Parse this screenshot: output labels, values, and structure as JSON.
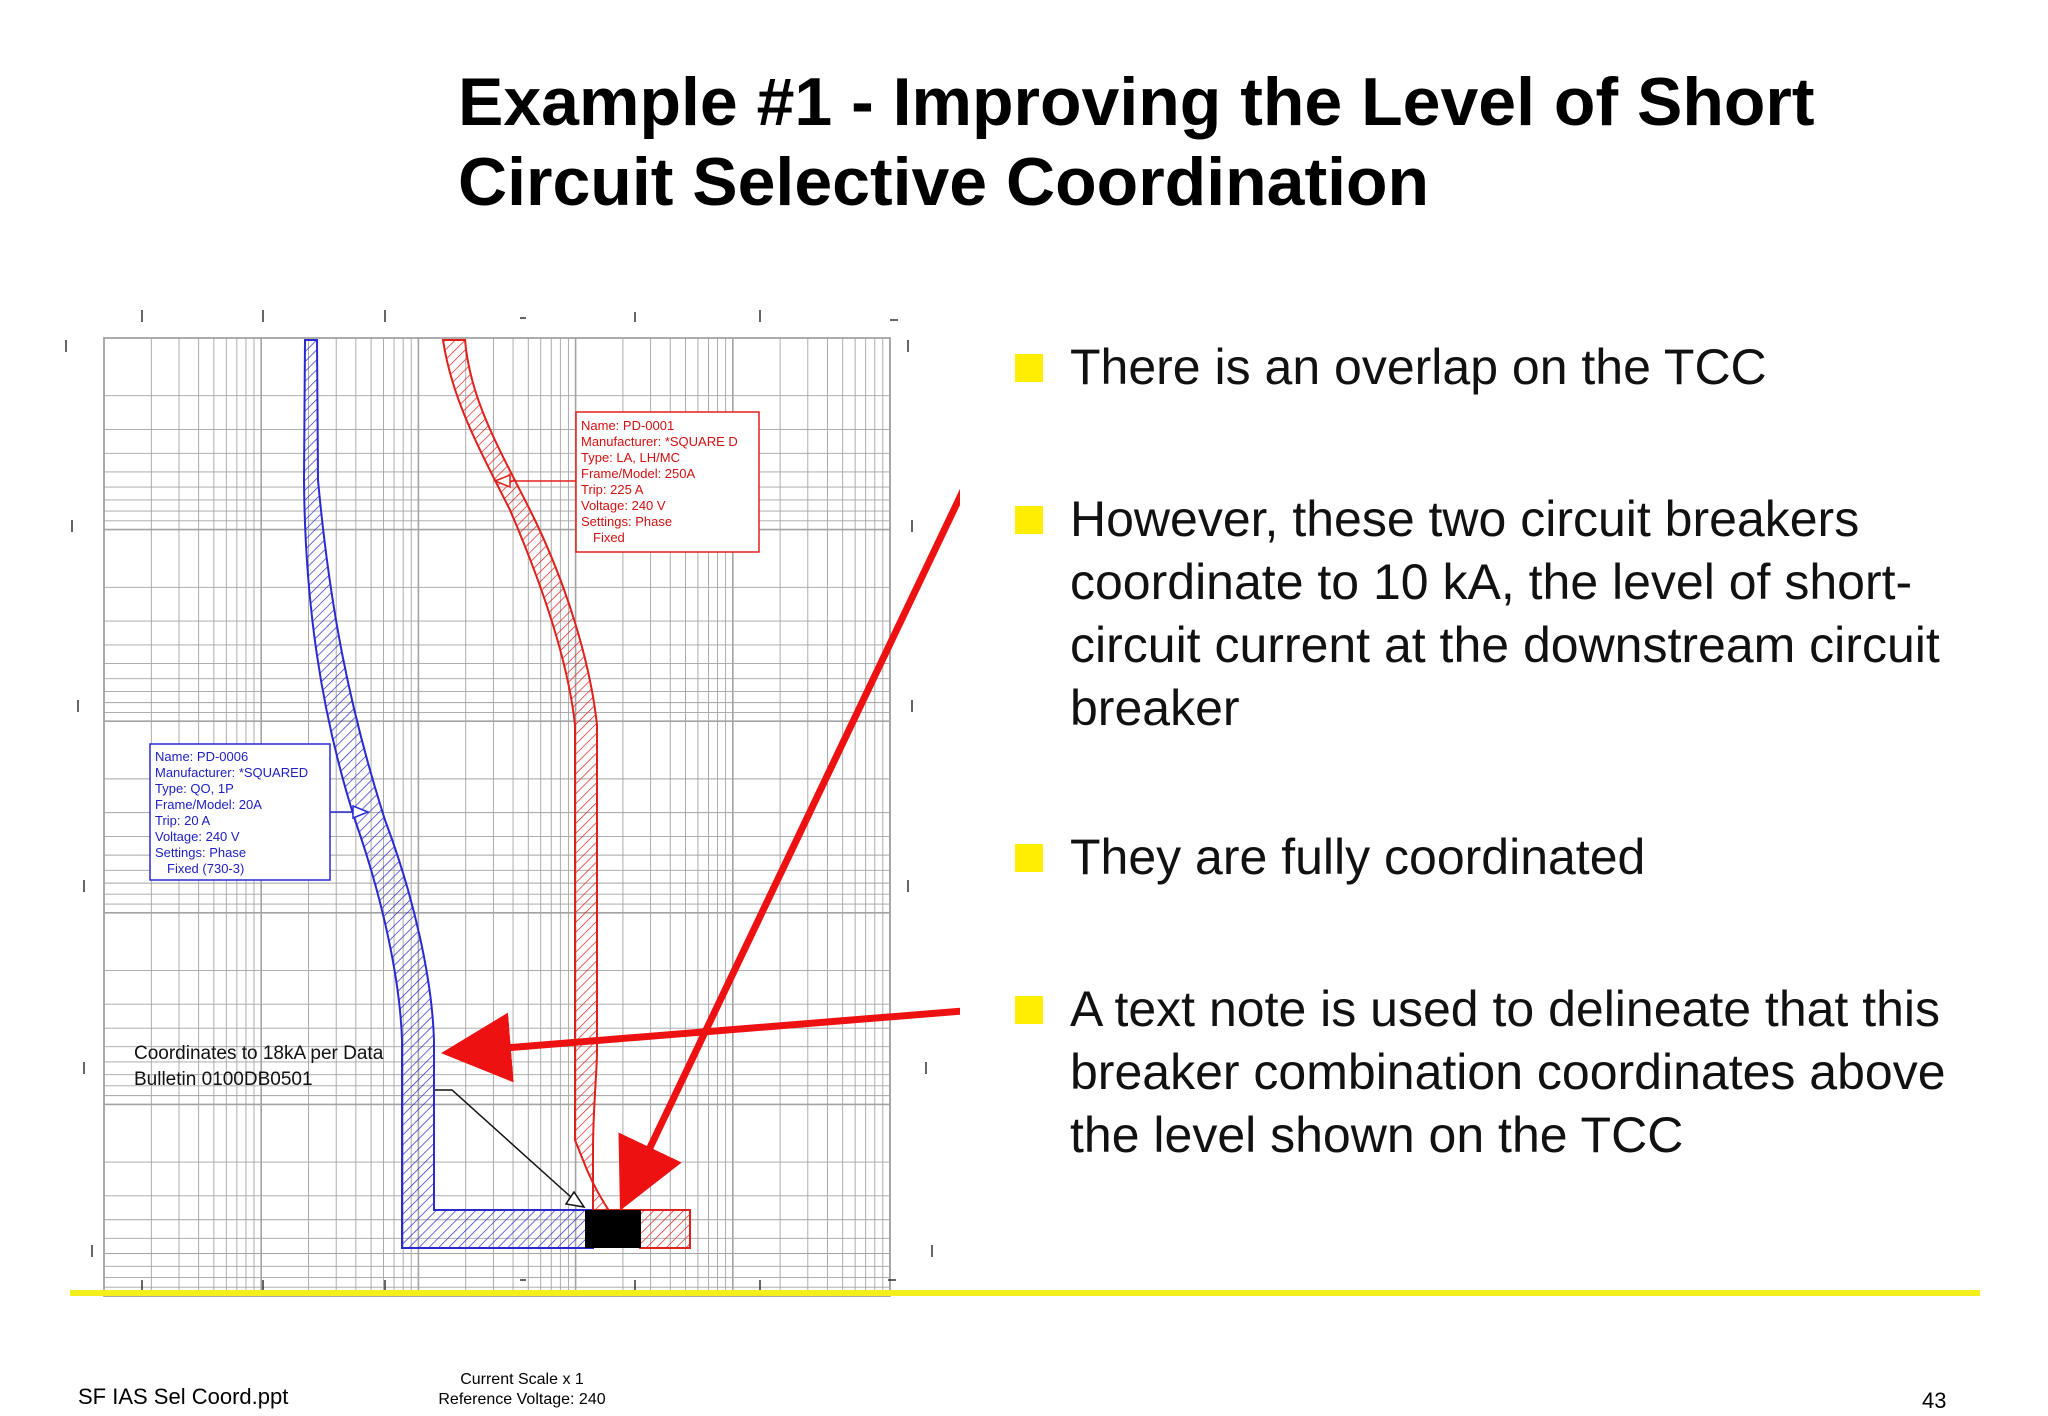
{
  "slide": {
    "title_line1": "Example #1 - Improving the Level of Short",
    "title_line2": "Circuit Selective Coordination"
  },
  "bullets": [
    {
      "text": "There is an overlap on the TCC"
    },
    {
      "text": "However, these two circuit breakers coordinate to 10 kA, the level of short-circuit current at the downstream circuit breaker"
    },
    {
      "text": "They are fully coordinated"
    },
    {
      "text": "A text note is used to delineate that this breaker combination coordinates above the level shown on the TCC"
    }
  ],
  "tcc": {
    "upstream_label": [
      "Name: PD-0001",
      "Manufacturer: *SQUARE D",
      "Type: LA, LH/MC",
      "Frame/Model: 250A",
      "Trip: 225 A",
      "Voltage: 240 V",
      "Settings: Phase",
      "Fixed"
    ],
    "downstream_label": [
      "Name: PD-0006",
      "Manufacturer: *SQUARED",
      "Type: QO, 1P",
      "Frame/Model: 20A",
      "Trip: 20 A",
      "Voltage: 240 V",
      "Settings: Phase",
      "Fixed (730-3)"
    ],
    "note_line1": "Coordinates to 18kA per Data",
    "note_line2": "Bulletin 0100DB0501",
    "colors": {
      "upstream": "#e0201c",
      "downstream": "#2a2ad0",
      "arrow": "#ee1111",
      "grid": "#9a9a9a"
    }
  },
  "footer": {
    "file_name": "SF IAS Sel Coord.ppt",
    "current_scale": "Current Scale  x 1",
    "reference_voltage": "Reference Voltage: 240",
    "page_number": "43"
  },
  "colors": {
    "bullet": "#ffee00",
    "rule": "#f4ef1a"
  }
}
